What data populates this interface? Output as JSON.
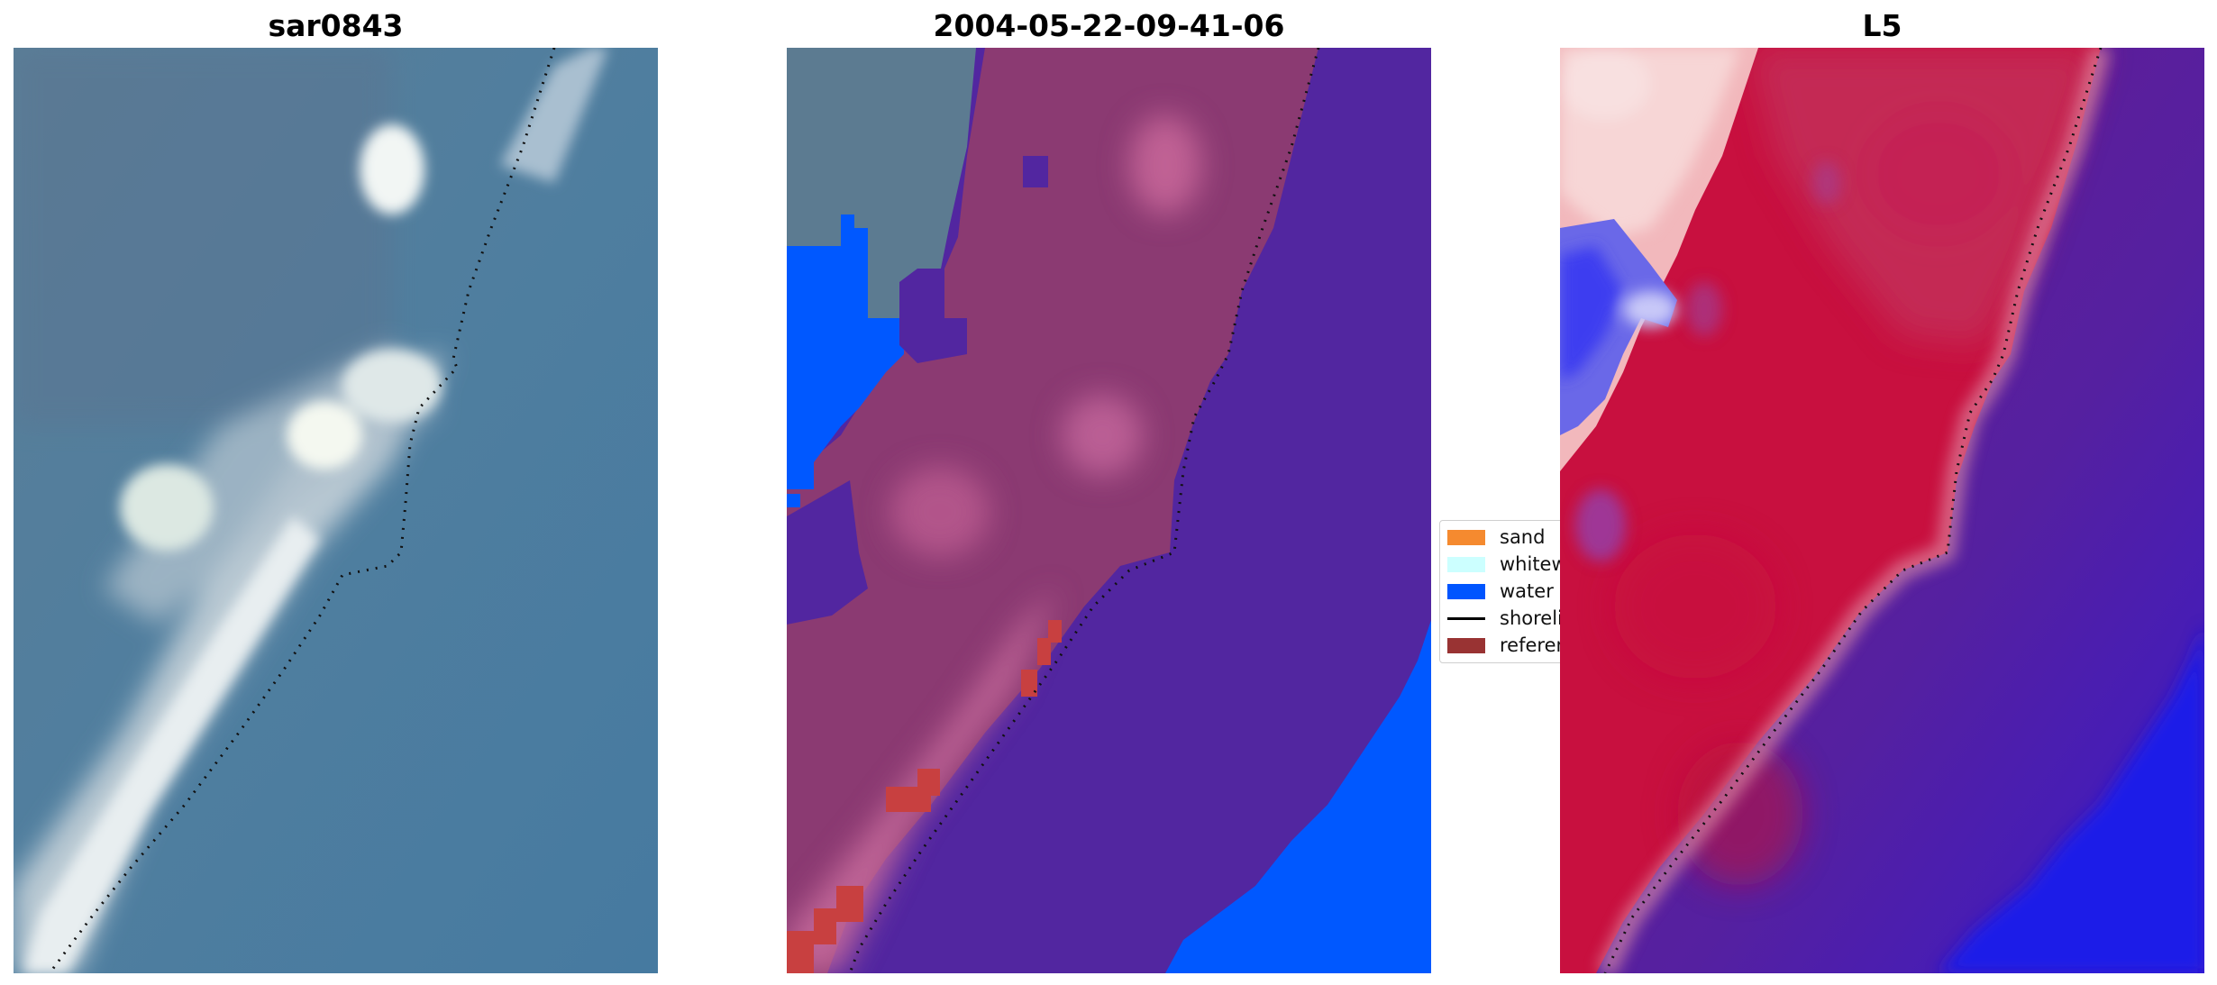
{
  "panels": {
    "left": {
      "title": "sar0843"
    },
    "middle": {
      "title": "2004-05-22-09-41-06"
    },
    "right": {
      "title": "L5"
    }
  },
  "legend": {
    "items": [
      {
        "label": "sand",
        "color": "#f58a2f",
        "kind": "patch"
      },
      {
        "label": "whitewater",
        "color": "#ccffff",
        "kind": "patch"
      },
      {
        "label": "water",
        "color": "#0055ff",
        "kind": "patch"
      },
      {
        "label": "shoreline",
        "color": "#000000",
        "kind": "line"
      },
      {
        "label": "reference shoreline",
        "color": "#993333",
        "kind": "patch"
      }
    ]
  },
  "colors": {
    "sea": "#4f7fa0",
    "beach_rgb": "#c9d6de",
    "land_class": "#8a3a73",
    "water_class": "#5226a0",
    "water_blue": "#0058ff",
    "reference_red": "#c84040",
    "index_red": "#c8103f",
    "index_pink": "#f0b0b8",
    "index_purple": "#5a20a0"
  }
}
